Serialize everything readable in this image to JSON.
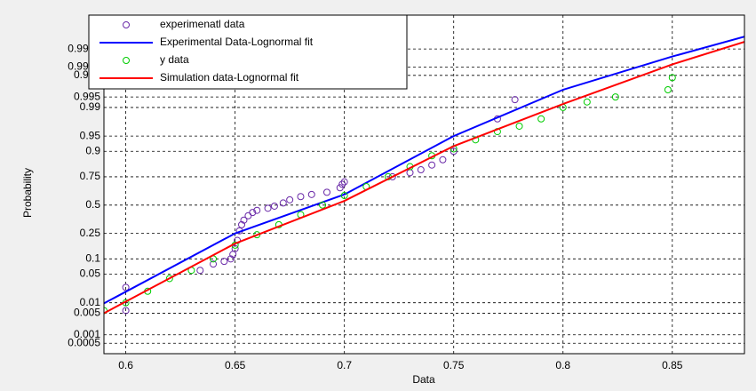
{
  "chart_data": {
    "type": "scatter",
    "yscale": "probability",
    "grid": true,
    "legend": "upper left",
    "xlabel": "Data",
    "ylabel": "Probability",
    "xlim": [
      0.59,
      0.883
    ],
    "xticks": [
      0.6,
      0.65,
      0.7,
      0.75,
      0.8,
      0.85
    ],
    "ylim": [
      0.0002,
      0.999997
    ],
    "yticks": [
      0.0005,
      0.001,
      0.005,
      0.01,
      0.05,
      0.1,
      0.25,
      0.5,
      0.75,
      0.9,
      0.95,
      0.99,
      0.995,
      0.999,
      0.9995,
      0.9999
    ],
    "series": [
      {
        "name": "experimenatl data",
        "color": "#6a2aa8",
        "mode": "markers",
        "x": [
          0.6,
          0.6,
          0.634,
          0.64,
          0.645,
          0.648,
          0.649,
          0.65,
          0.651,
          0.652,
          0.653,
          0.654,
          0.656,
          0.658,
          0.66,
          0.665,
          0.668,
          0.672,
          0.675,
          0.68,
          0.685,
          0.692,
          0.698,
          0.699,
          0.7,
          0.722,
          0.73,
          0.735,
          0.74,
          0.745,
          0.75,
          0.77,
          0.778
        ],
        "values": [
          0.006,
          0.025,
          0.06,
          0.08,
          0.09,
          0.1,
          0.12,
          0.15,
          0.2,
          0.27,
          0.32,
          0.36,
          0.4,
          0.43,
          0.45,
          0.47,
          0.49,
          0.52,
          0.55,
          0.58,
          0.6,
          0.62,
          0.66,
          0.69,
          0.71,
          0.75,
          0.78,
          0.8,
          0.83,
          0.86,
          0.9,
          0.98,
          0.994
        ]
      },
      {
        "name": "Experimental Data-Lognormal  fit",
        "color": "#0000ff",
        "mode": "line",
        "x": [
          0.59,
          0.65,
          0.7,
          0.75,
          0.8,
          0.85,
          0.883
        ],
        "values": [
          0.0096,
          0.25,
          0.6,
          0.95,
          0.997,
          0.9998,
          0.99997
        ]
      },
      {
        "name": "y data",
        "color": "#00cc00",
        "mode": "markers",
        "x": [
          0.59,
          0.6,
          0.61,
          0.62,
          0.63,
          0.64,
          0.65,
          0.66,
          0.67,
          0.68,
          0.69,
          0.7,
          0.71,
          0.72,
          0.73,
          0.74,
          0.75,
          0.76,
          0.77,
          0.78,
          0.79,
          0.8,
          0.811,
          0.824,
          0.848,
          0.85
        ],
        "values": [
          0.006,
          0.01,
          0.02,
          0.04,
          0.06,
          0.1,
          0.17,
          0.24,
          0.32,
          0.41,
          0.5,
          0.59,
          0.67,
          0.75,
          0.82,
          0.88,
          0.91,
          0.94,
          0.96,
          0.97,
          0.98,
          0.99,
          0.993,
          0.995,
          0.997,
          0.9988
        ]
      },
      {
        "name": "Simulation data-Lognormal fit",
        "color": "#ff0000",
        "mode": "line",
        "x": [
          0.59,
          0.65,
          0.7,
          0.75,
          0.8,
          0.85,
          0.883
        ],
        "values": [
          0.005,
          0.18,
          0.54,
          0.92,
          0.992,
          0.9996,
          0.99995
        ]
      }
    ]
  }
}
